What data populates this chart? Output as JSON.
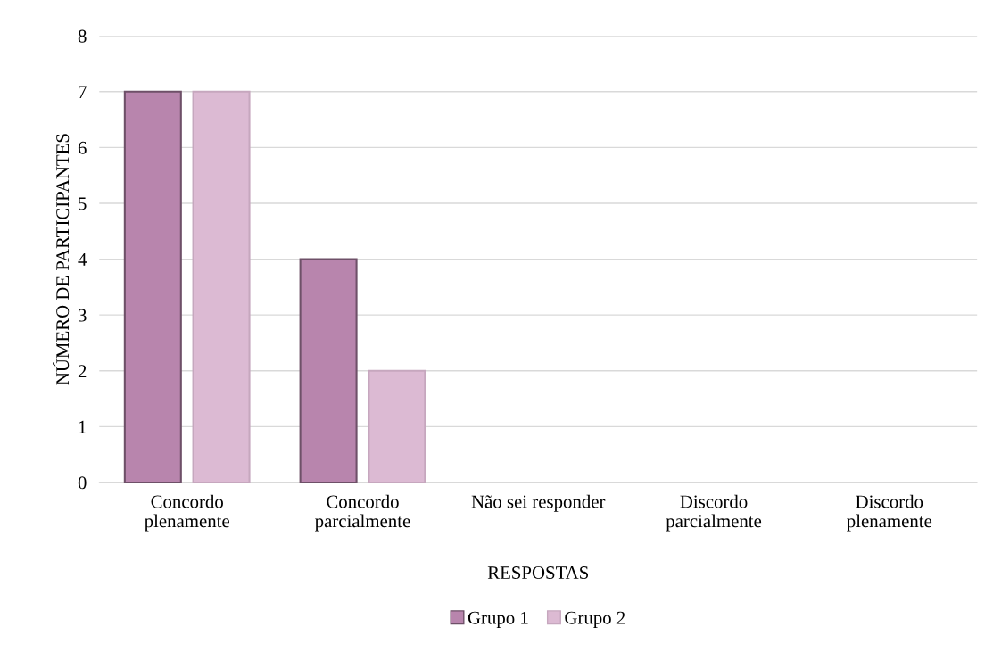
{
  "chart_data": {
    "type": "bar",
    "xlabel": "RESPOSTAS",
    "ylabel": "NÚMERO DE PARTICIPANTES",
    "categories": [
      "Concordo\nplenamente",
      "Concordo\nparcialmente",
      "Não sei responder",
      "Discordo\nparcialmente",
      "Discordo\nplenamente"
    ],
    "series": [
      {
        "name": "Grupo 1",
        "color": "#b885ad",
        "values": [
          7,
          4,
          0,
          0,
          0
        ]
      },
      {
        "name": "Grupo 2",
        "color": "#dcbad3",
        "values": [
          7,
          2,
          0,
          0,
          0
        ]
      }
    ],
    "ylim": [
      0,
      8
    ],
    "yticks": [
      0,
      1,
      2,
      3,
      4,
      5,
      6,
      7,
      8
    ],
    "grid": "y",
    "legend": "bottom"
  }
}
